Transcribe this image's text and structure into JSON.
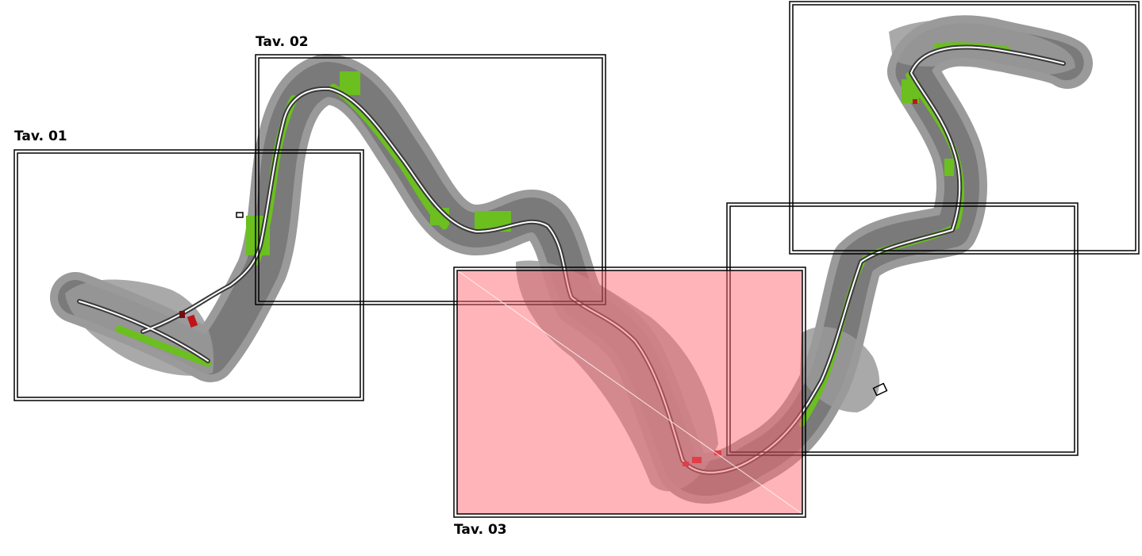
{
  "sheets": [
    {
      "id": "tav01",
      "label": "Tav. 01",
      "highlighted": false
    },
    {
      "id": "tav02",
      "label": "Tav. 02",
      "highlighted": false
    },
    {
      "id": "tav03",
      "label": "Tav. 03",
      "highlighted": true
    },
    {
      "id": "tav04",
      "label": "",
      "highlighted": false
    },
    {
      "id": "tav05",
      "label": "",
      "highlighted": false
    }
  ],
  "colors": {
    "terrain": "#8c8c8c",
    "terrain_dark": "#5e5e5e",
    "vegetation": "#6bbf1f",
    "road_center": "#ffffff",
    "road_edge": "#3a3a3a",
    "feature_red": "#c0141c",
    "highlight_fill": "#ff8a92",
    "frame": "#000000"
  }
}
